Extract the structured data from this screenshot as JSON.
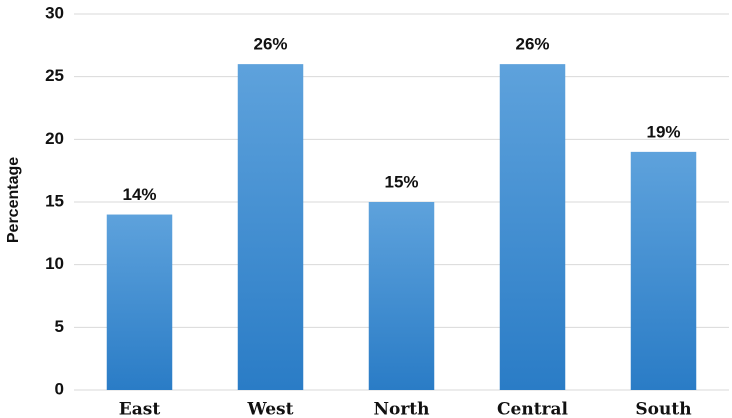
{
  "chart_data": {
    "type": "bar",
    "y_label": "Percentage",
    "categories": [
      "East",
      "West",
      "North",
      "Central",
      "South"
    ],
    "values": [
      14,
      26,
      15,
      26,
      19
    ],
    "value_labels": [
      "14%",
      "26%",
      "15%",
      "26%",
      "19%"
    ],
    "color": "#3f8fd2",
    "ylim": [
      0,
      30
    ],
    "yticks": [
      0,
      5,
      10,
      15,
      20,
      25,
      30
    ],
    "grid": true
  }
}
